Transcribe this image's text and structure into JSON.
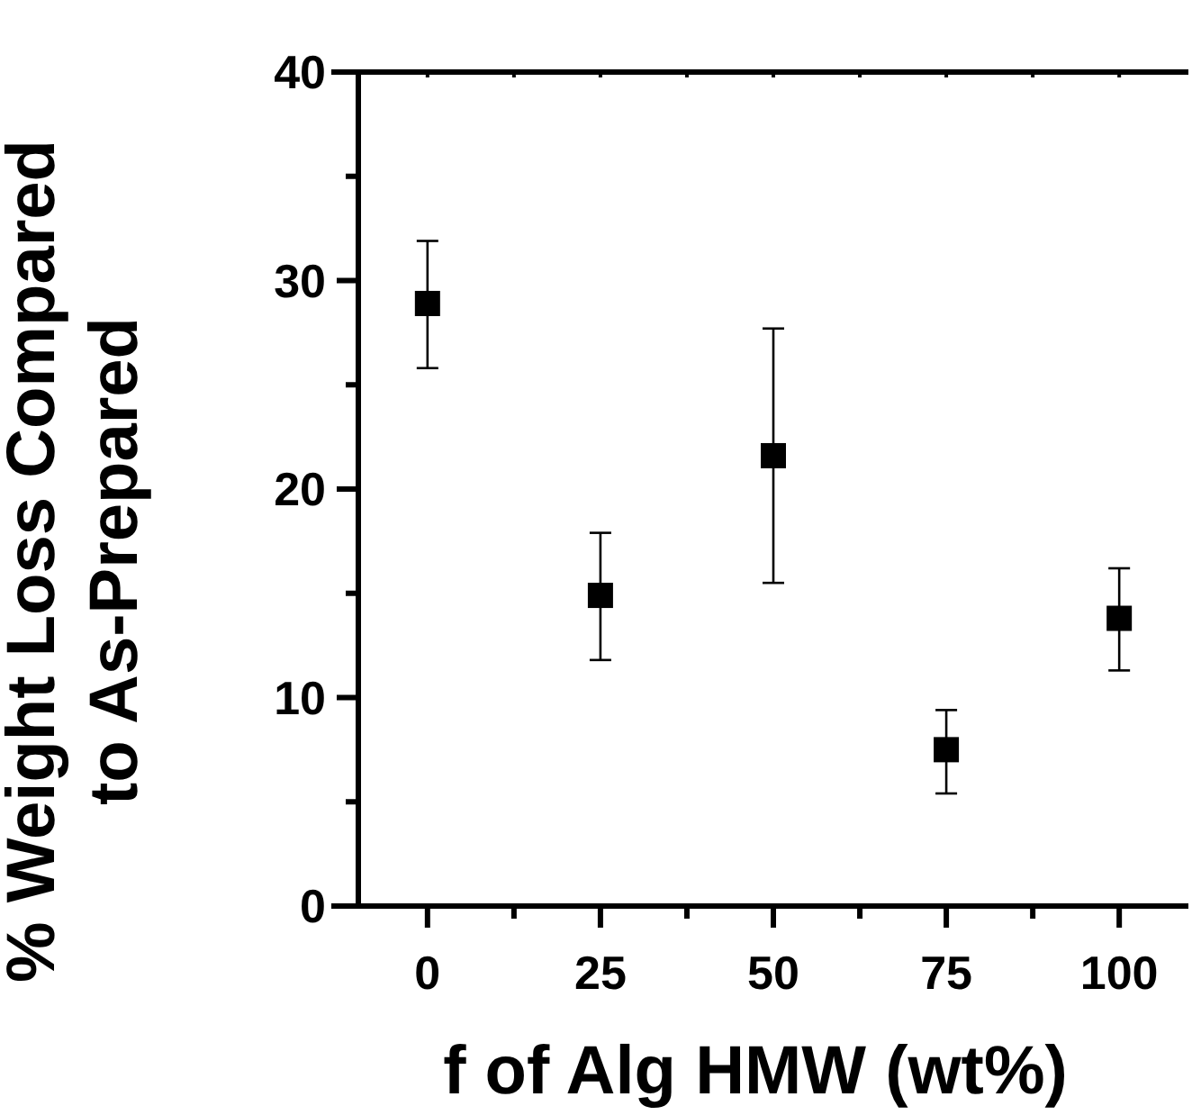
{
  "chart_data": {
    "type": "scatter",
    "xlabel": "f of Alg HMW (wt%)",
    "ylabel": "% Weight Loss Compared\nto As-Prepared",
    "x": [
      0,
      25,
      50,
      75,
      100
    ],
    "series": [
      {
        "color": "#000000",
        "values": [
          28.9,
          14.9,
          21.6,
          7.5,
          13.8
        ],
        "errors": [
          [
            25.8,
            31.9
          ],
          [
            11.8,
            17.9
          ],
          [
            15.5,
            27.7
          ],
          [
            5.4,
            9.4
          ],
          [
            11.3,
            16.2
          ]
        ]
      }
    ],
    "marker": "square",
    "xlim": [
      -10,
      110
    ],
    "xticks": [
      0,
      {
        "value": 12.5,
        "label": null
      },
      25,
      {
        "value": 37.5,
        "label": null
      },
      50,
      {
        "value": 62.5,
        "label": null
      },
      75,
      {
        "value": 87.5,
        "label": null
      },
      100
    ],
    "ylim": [
      0,
      40
    ],
    "yticks": [
      0,
      {
        "value": 5,
        "label": null
      },
      10,
      {
        "value": 15,
        "label": null
      },
      20,
      {
        "value": 25,
        "label": null
      },
      30,
      {
        "value": 35,
        "label": null
      },
      40
    ]
  }
}
